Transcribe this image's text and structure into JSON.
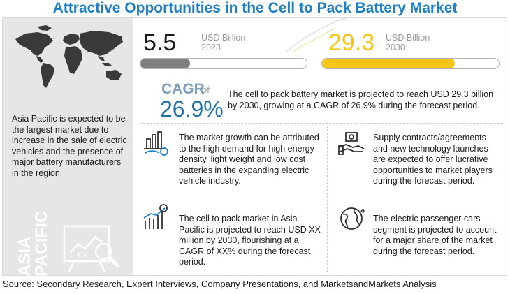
{
  "title": "Attractive Opportunities in the Cell to Pack Battery Market",
  "left_panel": {
    "text": "Asia Pacific is expected to be the largest market due to increase in the sale of electric vehicles and the presence of major battery manufacturers in the region.",
    "vertical_label_line1": "ASIA",
    "vertical_label_line2": "PACIFIC"
  },
  "stats": [
    {
      "value": "5.5",
      "unit": "USD Billion",
      "year": "2023",
      "fill_fraction": 0.3,
      "color": "#7f7f7f"
    },
    {
      "value": "29.3",
      "unit": "USD Billion",
      "year": "2030",
      "fill_fraction": 0.75,
      "color": "#f5c518"
    }
  ],
  "cagr": {
    "label": "CAGR",
    "of": "of",
    "value": "26.9%",
    "text": "The cell to pack battery market is projected to reach USD 29.3 billion by 2030, growing at a CAGR of 26.9% during the forecast period."
  },
  "insights": [
    {
      "text": "The market growth can be attributed to the high demand for high energy density, light weight and low cost batteries in the expanding electric vehicle industry.",
      "icon": "bar-chart-gear-icon"
    },
    {
      "text": "Supply contracts/agreements and new technology launches are expected to offer lucrative opportunities to market players during the forecast period.",
      "icon": "handshake-money-icon"
    },
    {
      "text": "The cell to pack market in Asia Pacific is projected to reach USD XX million by 2030, flourishing at a CAGR of XX% during the forecast period.",
      "icon": "growth-chart-dollar-icon"
    },
    {
      "text": "The electric passenger cars  segment is projected to account for a major share of the market during the forecast period.",
      "icon": "globe-location-icon"
    }
  ],
  "source": "Source: Secondary Research, Expert Interviews, Company Presentations, and MarketsandMarkets Analysis",
  "colors": {
    "title": "#1f7fc4",
    "cagr_value": "#1f6fa8",
    "panel": "#e6e6e6"
  }
}
